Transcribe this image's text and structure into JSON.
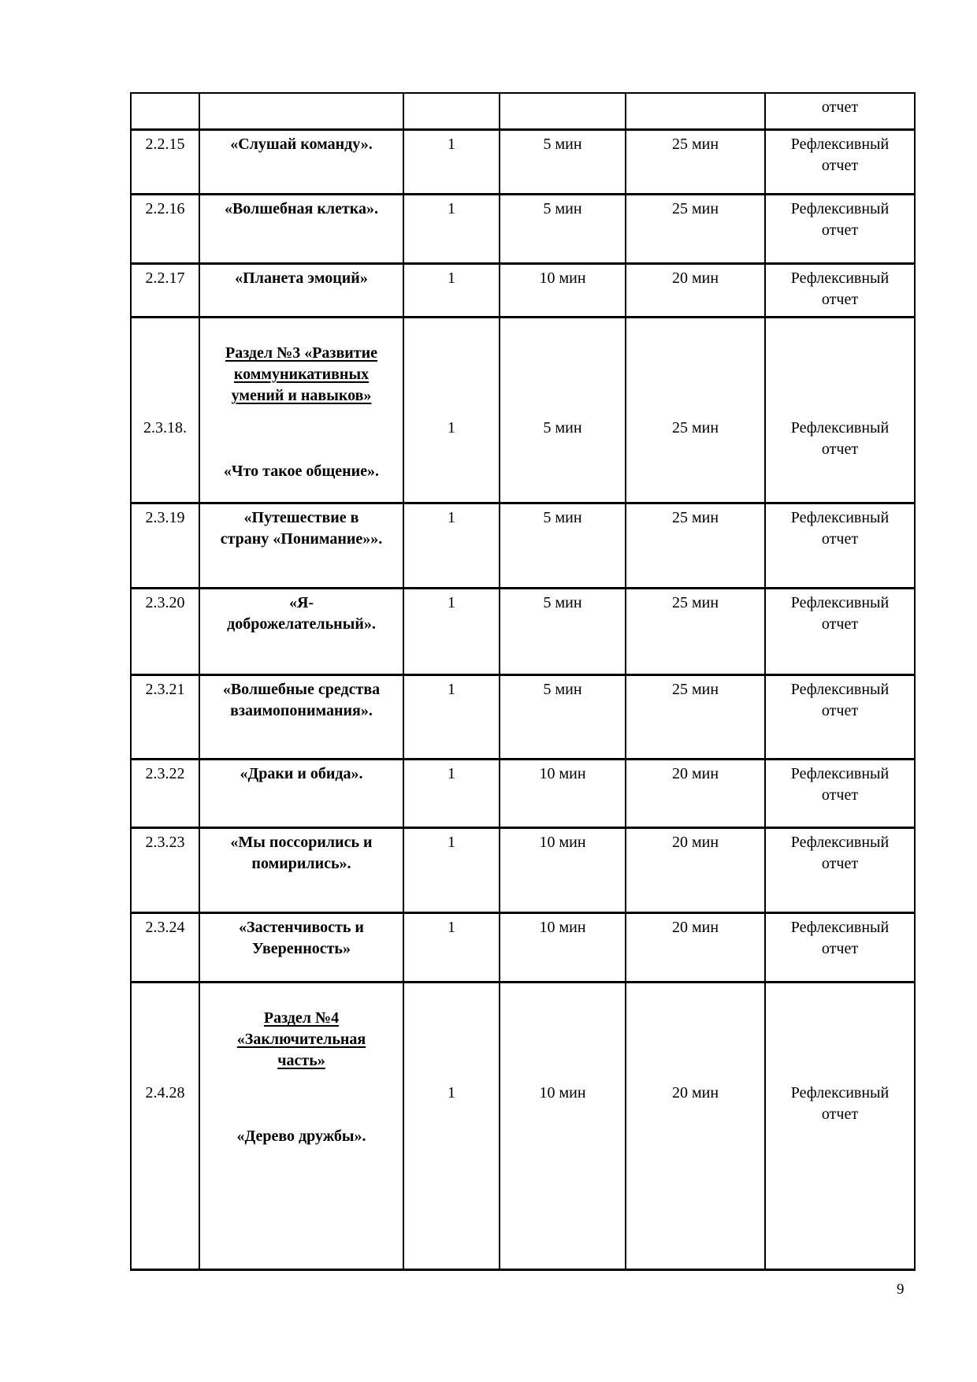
{
  "page": {
    "number": "9"
  },
  "table": {
    "rows": [
      {
        "type": "partial",
        "num": "",
        "name": "",
        "count": "",
        "time1": "",
        "time2": "",
        "report": "отчет"
      },
      {
        "type": "normal",
        "num": "2.2.15",
        "name": "«Слушай команду».",
        "count": "1",
        "time1": "5 мин",
        "time2": "25 мин",
        "report": "Рефлексивный\nотчет"
      },
      {
        "type": "normal",
        "num": "2.2.16",
        "name": "«Волшебная клетка».",
        "count": "1",
        "time1": "5 мин",
        "time2": "25 мин",
        "report": "Рефлексивный\nотчет"
      },
      {
        "type": "normal",
        "num": "2.2.17",
        "name": "«Планета эмоций»",
        "count": "1",
        "time1": "10 мин",
        "time2": "20 мин",
        "report": "Рефлексивный\nотчет"
      },
      {
        "type": "section",
        "num": "2.3.18.",
        "section": "Раздел №3 «Развитие\nкоммуникативных\nумений и навыков»",
        "name": "«Что такое общение».",
        "count": "1",
        "time1": "5 мин",
        "time2": "25 мин",
        "report": "Рефлексивный\nотчет"
      },
      {
        "type": "normal",
        "num": "2.3.19",
        "name": "«Путешествие в\nстрану «Понимание»».",
        "count": "1",
        "time1": "5 мин",
        "time2": "25 мин",
        "report": "Рефлексивный\nотчет"
      },
      {
        "type": "normal",
        "num": "2.3.20",
        "name": "«Я-\nдоброжелательный».",
        "count": "1",
        "time1": "5 мин",
        "time2": "25 мин",
        "report": "Рефлексивный\nотчет"
      },
      {
        "type": "normal",
        "num": "2.3.21",
        "name": "«Волшебные средства\nвзаимопонимания».",
        "count": "1",
        "time1": "5 мин",
        "time2": "25 мин",
        "report": "Рефлексивный\nотчет"
      },
      {
        "type": "normal",
        "num": "2.3.22",
        "name": "«Драки и обида».",
        "count": "1",
        "time1": "10 мин",
        "time2": "20 мин",
        "report": "Рефлексивный\nотчет"
      },
      {
        "type": "normal",
        "num": "2.3.23",
        "name": "«Мы поссорились и\nпомирились».",
        "count": "1",
        "time1": "10 мин",
        "time2": "20 мин",
        "report": "Рефлексивный\nотчет"
      },
      {
        "type": "normal",
        "num": "2.3.24",
        "name": "«Застенчивость и\nУверенность»",
        "count": "1",
        "time1": "10 мин",
        "time2": "20 мин",
        "report": "Рефлексивный\nотчет"
      },
      {
        "type": "section",
        "num": "2.4.28",
        "section": "Раздел №4\n«Заключительная\nчасть»",
        "name": "«Дерево дружбы».",
        "count": "1",
        "time1": "10 мин",
        "time2": "20 мин",
        "report": "Рефлексивный\nотчет"
      }
    ]
  }
}
